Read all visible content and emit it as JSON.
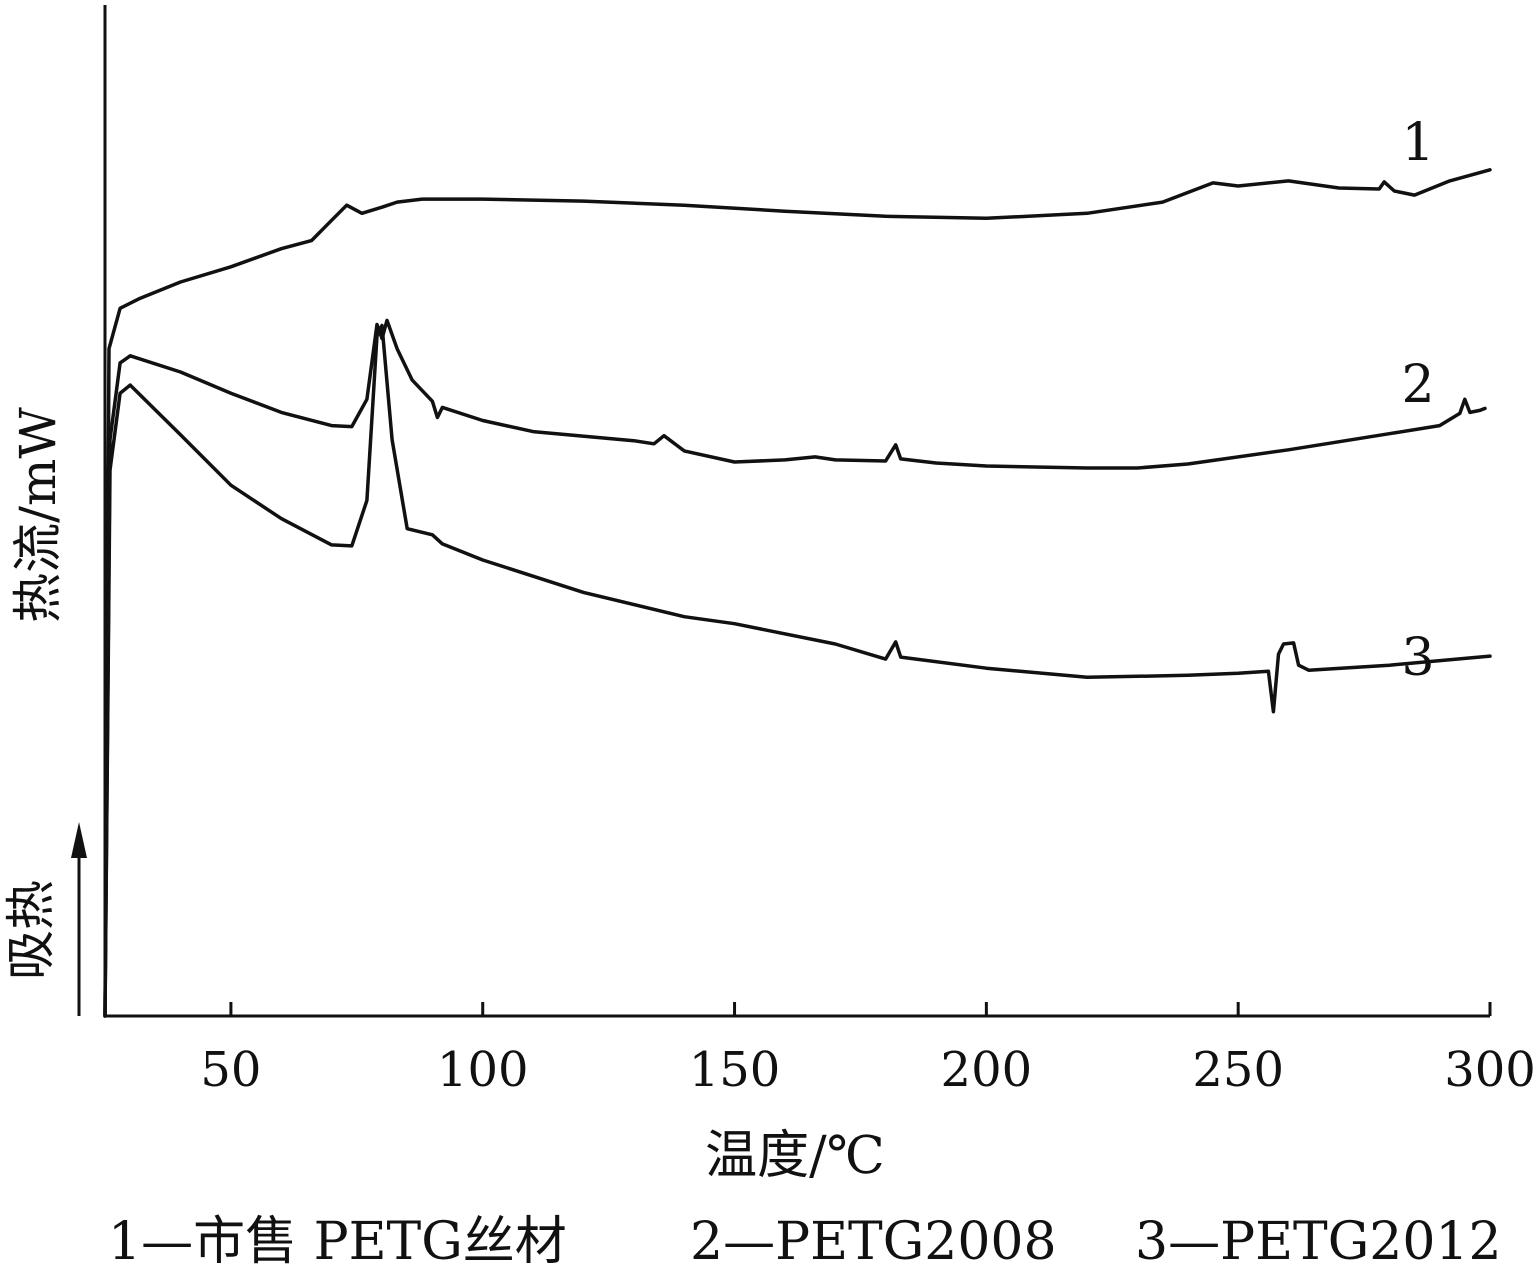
{
  "chart_data": {
    "type": "line",
    "xlabel": "温度/℃",
    "ylabel": "热流/mW",
    "direction_label": "吸热",
    "xlim": [
      25,
      300
    ],
    "xticks": [
      50,
      100,
      150,
      200,
      250,
      300
    ],
    "ylim": [
      0,
      100
    ],
    "y_ticks_shown": false,
    "grid": false,
    "legend_position": "bottom",
    "legend": [
      "1—市售 PETG丝材",
      "2—PETG2008",
      "3—PETG2012"
    ],
    "series": [
      {
        "name": "1",
        "values": [
          [
            25,
            0
          ],
          [
            25.8,
            66
          ],
          [
            28,
            70
          ],
          [
            32,
            71
          ],
          [
            40,
            72.6
          ],
          [
            50,
            74.1
          ],
          [
            60,
            75.9
          ],
          [
            66,
            76.7
          ],
          [
            70,
            78.7
          ],
          [
            73,
            80.2
          ],
          [
            76,
            79.4
          ],
          [
            80,
            80
          ],
          [
            83,
            80.5
          ],
          [
            88,
            80.8
          ],
          [
            100,
            80.8
          ],
          [
            120,
            80.6
          ],
          [
            140,
            80.2
          ],
          [
            160,
            79.6
          ],
          [
            180,
            79.1
          ],
          [
            200,
            78.9
          ],
          [
            220,
            79.4
          ],
          [
            235,
            80.5
          ],
          [
            245,
            82.4
          ],
          [
            250,
            82.1
          ],
          [
            260,
            82.6
          ],
          [
            270,
            81.9
          ],
          [
            278,
            81.8
          ],
          [
            279,
            82.5
          ],
          [
            281,
            81.6
          ],
          [
            285,
            81.2
          ],
          [
            292,
            82.6
          ],
          [
            300,
            83.7
          ]
        ]
      },
      {
        "name": "2",
        "values": [
          [
            25,
            0
          ],
          [
            26,
            57
          ],
          [
            28,
            64.6
          ],
          [
            30,
            65.3
          ],
          [
            40,
            63.7
          ],
          [
            50,
            61.6
          ],
          [
            60,
            59.7
          ],
          [
            70,
            58.4
          ],
          [
            74,
            58.3
          ],
          [
            77,
            61
          ],
          [
            79,
            68.4
          ],
          [
            80,
            67
          ],
          [
            81,
            68.8
          ],
          [
            83,
            66
          ],
          [
            86,
            62.9
          ],
          [
            90,
            60.8
          ],
          [
            91,
            59.2
          ],
          [
            92,
            60.2
          ],
          [
            100,
            58.9
          ],
          [
            110,
            57.8
          ],
          [
            130,
            56.9
          ],
          [
            134,
            56.6
          ],
          [
            136,
            57.4
          ],
          [
            140,
            55.9
          ],
          [
            150,
            54.8
          ],
          [
            160,
            55
          ],
          [
            166,
            55.3
          ],
          [
            170,
            55
          ],
          [
            180,
            54.9
          ],
          [
            182,
            56.5
          ],
          [
            183,
            55.1
          ],
          [
            190,
            54.7
          ],
          [
            200,
            54.4
          ],
          [
            220,
            54.2
          ],
          [
            230,
            54.2
          ],
          [
            240,
            54.6
          ],
          [
            260,
            56
          ],
          [
            280,
            57.6
          ],
          [
            290,
            58.4
          ],
          [
            294,
            59.6
          ],
          [
            295,
            61
          ],
          [
            296,
            59.7
          ],
          [
            298,
            59.9
          ],
          [
            299,
            60.1
          ]
        ]
      },
      {
        "name": "3",
        "values": [
          [
            25,
            0
          ],
          [
            26,
            54
          ],
          [
            28,
            61.6
          ],
          [
            30,
            62.4
          ],
          [
            40,
            57.5
          ],
          [
            50,
            52.5
          ],
          [
            60,
            49.2
          ],
          [
            70,
            46.6
          ],
          [
            74,
            46.5
          ],
          [
            77,
            51
          ],
          [
            79,
            67.3
          ],
          [
            80,
            68.3
          ],
          [
            82,
            57
          ],
          [
            85,
            48.2
          ],
          [
            90,
            47.6
          ],
          [
            92,
            46.7
          ],
          [
            100,
            45.1
          ],
          [
            120,
            41.9
          ],
          [
            140,
            39.5
          ],
          [
            150,
            38.8
          ],
          [
            170,
            36.8
          ],
          [
            180,
            35.3
          ],
          [
            182,
            37
          ],
          [
            183,
            35.5
          ],
          [
            200,
            34.4
          ],
          [
            220,
            33.5
          ],
          [
            240,
            33.7
          ],
          [
            250,
            33.9
          ],
          [
            256,
            34.1
          ],
          [
            257,
            30.1
          ],
          [
            258,
            35.8
          ],
          [
            259,
            36.8
          ],
          [
            261,
            36.9
          ],
          [
            262,
            34.7
          ],
          [
            264,
            34.2
          ],
          [
            280,
            34.7
          ],
          [
            300,
            35.6
          ]
        ]
      }
    ],
    "curve_labels": [
      "1",
      "2",
      "3"
    ]
  }
}
